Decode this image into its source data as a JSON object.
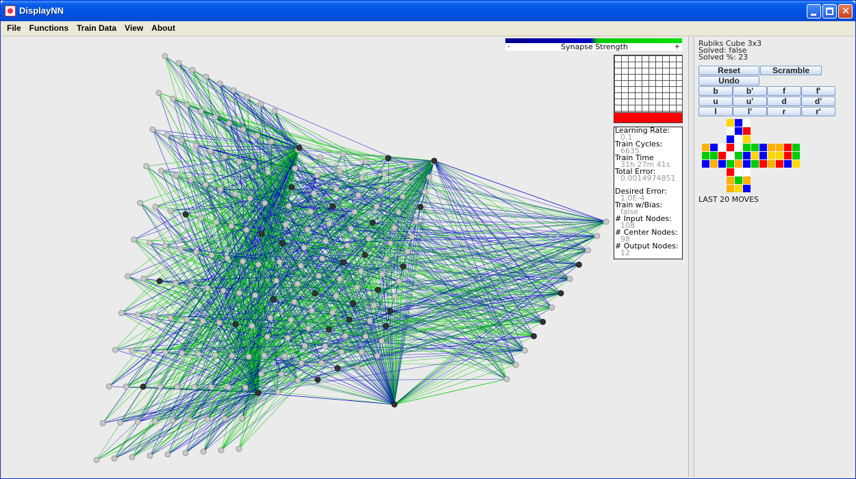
{
  "window": {
    "title": "DisplayNN"
  },
  "menu": [
    "File",
    "Functions",
    "Train Data",
    "View",
    "About"
  ],
  "legend": {
    "minus": "-",
    "label": "Synapse Strength",
    "plus": "+",
    "colors": {
      "negative": "#0000c8",
      "positive": "#00c800"
    }
  },
  "stats": [
    {
      "label": "Learning Rate:",
      "value": "0.1"
    },
    {
      "label": "Train Cycles:",
      "value": "6635"
    },
    {
      "label": "Train Time",
      "value": "31h 27m 41s"
    },
    {
      "label": "Total Error:",
      "value": "0.0014974851"
    },
    {
      "label": "Desired Error:",
      "value": "1.0E-4"
    },
    {
      "label": "Train w/Bias:",
      "value": "false"
    },
    {
      "label": "# Input Nodes:",
      "value": "108"
    },
    {
      "label": "# Center Nodes:",
      "value": "98"
    },
    {
      "label": "# Output Nodes:",
      "value": "12"
    }
  ],
  "cube": {
    "title": "Rubiks Cube 3x3",
    "solved": "Solved: false",
    "solved_pct": "Solved %: 23",
    "reset_label": "Reset",
    "scramble_label": "Scramble",
    "undo_label": "Undo",
    "move_buttons": [
      "b",
      "b'",
      "f",
      "f'",
      "u",
      "u'",
      "d",
      "d'",
      "l",
      "l'",
      "r",
      "r'"
    ],
    "last_moves_label": "LAST 20 MOVES",
    "colors": {
      "Y": "#ffd700",
      "B": "#0000ff",
      "W": "#ffffff",
      "R": "#ff0000",
      "G": "#00cc00",
      "O": "#ffb000"
    },
    "net": {
      "up": [
        "YBW",
        "WBR",
        "BWY"
      ],
      "left": [
        "OBW",
        "GGR",
        "BOB"
      ],
      "front": [
        "RWG",
        "WGB",
        "GOB"
      ],
      "right": [
        "GBO",
        "YBY",
        "GRO"
      ],
      "back": [
        "ORG",
        "YRG",
        "RBY"
      ],
      "down": [
        "RWW",
        "OGO",
        "OYB"
      ]
    }
  }
}
